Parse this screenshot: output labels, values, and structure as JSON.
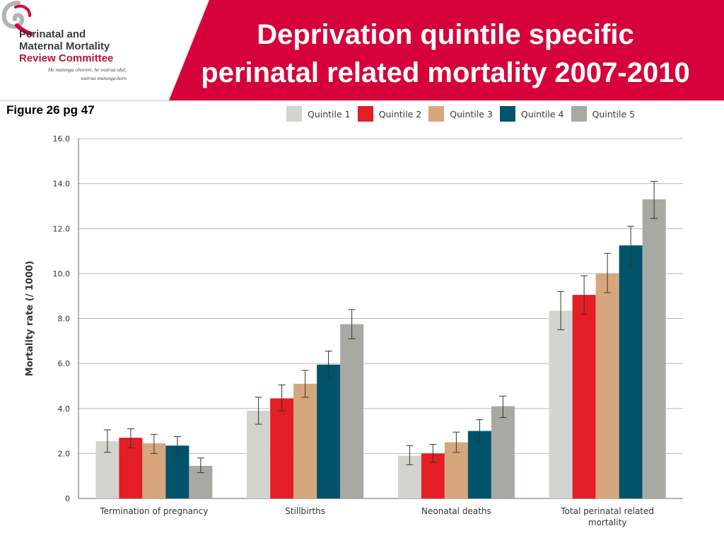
{
  "header": {
    "title_line1": "Deprivation quintile specific",
    "title_line2": "perinatal related mortality 2007-2010",
    "logo_line1": "Perinatal and",
    "logo_line2": "Maternal Mortality",
    "logo_line3": "Review Committee",
    "logo_tagline1": "He matenga ohorere, he wairua ulul,",
    "logo_tagline2": "wairua mutunga-kore"
  },
  "figure_label": "Figure 26 pg 47",
  "colors": {
    "banner_red": "#d6003a",
    "q1": "#d3d3cf",
    "q2": "#e31e25",
    "q3": "#d6a77e",
    "q4": "#00536b",
    "q5": "#a8a9a2"
  },
  "chart_data": {
    "type": "bar",
    "ylabel": "Mortality rate (/ 1000)",
    "ylim": [
      0,
      16
    ],
    "yticks": [
      "0",
      "2.0",
      "4.0",
      "6.0",
      "8.0",
      "10.0",
      "12.0",
      "14.0",
      "16.0"
    ],
    "grid": true,
    "legend_position": "top",
    "categories": [
      "Termination of pregnancy",
      "Stillbirths",
      "Neonatal deaths",
      "Total perinatal related mortality"
    ],
    "series": [
      {
        "name": "Quintile 1",
        "color": "#d3d3cf",
        "values": [
          2.55,
          3.9,
          1.9,
          8.35
        ],
        "ci_low": [
          2.05,
          3.3,
          1.5,
          7.5
        ],
        "ci_high": [
          3.05,
          4.5,
          2.35,
          9.2
        ]
      },
      {
        "name": "Quintile 2",
        "color": "#e31e25",
        "values": [
          2.7,
          4.45,
          2.0,
          9.05
        ],
        "ci_low": [
          2.25,
          3.9,
          1.6,
          8.2
        ],
        "ci_high": [
          3.1,
          5.05,
          2.4,
          9.9
        ]
      },
      {
        "name": "Quintile 3",
        "color": "#d6a77e",
        "values": [
          2.45,
          5.1,
          2.5,
          10.0
        ],
        "ci_low": [
          2.0,
          4.5,
          2.05,
          9.15
        ],
        "ci_high": [
          2.85,
          5.7,
          2.95,
          10.9
        ]
      },
      {
        "name": "Quintile 4",
        "color": "#00536b",
        "values": [
          2.35,
          5.95,
          3.0,
          11.25
        ],
        "ci_low": [
          1.95,
          5.35,
          2.5,
          10.35
        ],
        "ci_high": [
          2.75,
          6.55,
          3.5,
          12.1
        ]
      },
      {
        "name": "Quintile 5",
        "color": "#a8a9a2",
        "values": [
          1.45,
          7.75,
          4.1,
          13.3
        ],
        "ci_low": [
          1.15,
          7.1,
          3.6,
          12.45
        ],
        "ci_high": [
          1.8,
          8.4,
          4.55,
          14.1
        ]
      }
    ]
  }
}
